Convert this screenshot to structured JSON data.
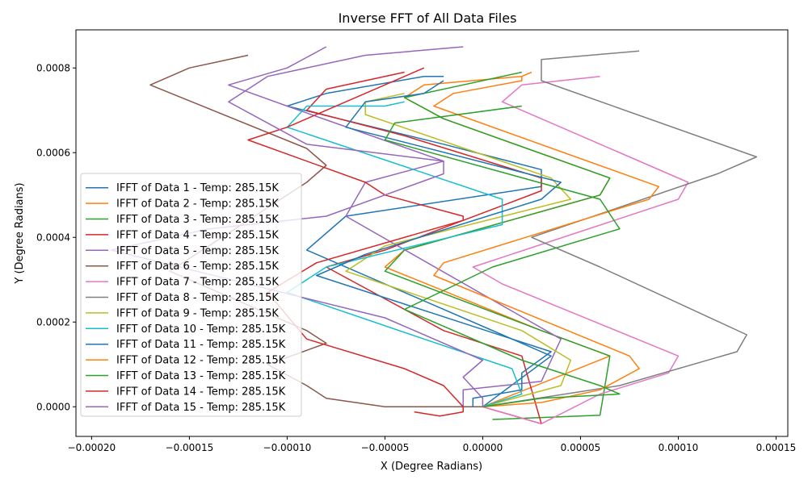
{
  "chart_data": {
    "type": "line",
    "title": "Inverse FFT of All Data Files",
    "xlabel": "X (Degree Radians)",
    "ylabel": "Y (Degree Radians)",
    "xlim": [
      -0.000208,
      0.000156
    ],
    "ylim": [
      -7e-05,
      0.00089
    ],
    "xticks": [
      -0.0002,
      -0.00015,
      -0.0001,
      -5e-05,
      0,
      5e-05,
      0.0001,
      0.00015
    ],
    "xtick_labels": [
      "−0.00020",
      "−0.00015",
      "−0.00010",
      "−0.00005",
      "0.00000",
      "0.00005",
      "0.00010",
      "0.00015"
    ],
    "yticks": [
      0,
      0.0002,
      0.0004,
      0.0006,
      0.0008
    ],
    "ytick_labels": [
      "0.0000",
      "0.0002",
      "0.0004",
      "0.0006",
      "0.0008"
    ],
    "grid": false,
    "legend_position": "center-left",
    "series": [
      {
        "name": "IFFT of Data 1 - Temp: 285.15K",
        "color": "#1f77b4",
        "points": [
          [
            0,
            0
          ],
          [
            3.5e-05,
            0.00012
          ],
          [
            1e-05,
            0.00017
          ],
          [
            -9e-05,
            0.00037
          ],
          [
            -7e-05,
            0.00045
          ],
          [
            3e-05,
            0.00052
          ],
          [
            3e-05,
            0.00056
          ],
          [
            -2e-05,
            0.00062
          ],
          [
            -0.0001,
            0.00071
          ],
          [
            -8e-05,
            0.00074
          ],
          [
            -3e-05,
            0.00078
          ],
          [
            -2e-05,
            0.00078
          ]
        ]
      },
      {
        "name": "IFFT of Data 2 - Temp: 285.15K",
        "color": "#ff7f0e",
        "points": [
          [
            0,
            0
          ],
          [
            6.5e-05,
            0.00012
          ],
          [
            3e-05,
            0.00018
          ],
          [
            -5e-05,
            0.00033
          ],
          [
            -4e-05,
            0.00037
          ],
          [
            6e-05,
            0.0005
          ],
          [
            6.5e-05,
            0.00054
          ],
          [
            -2e-05,
            0.00068
          ],
          [
            -4e-05,
            0.00073
          ],
          [
            -3e-05,
            0.00076
          ],
          [
            2e-05,
            0.00078
          ],
          [
            2.5e-05,
            0.00079
          ]
        ]
      },
      {
        "name": "IFFT of Data 3 - Temp: 285.15K",
        "color": "#2ca02c",
        "points": [
          [
            5e-06,
            -3e-05
          ],
          [
            6e-05,
            -2e-05
          ],
          [
            6.5e-05,
            0.00012
          ],
          [
            3e-05,
            0.00018
          ],
          [
            -5e-05,
            0.00032
          ],
          [
            -4e-05,
            0.00037
          ],
          [
            6e-05,
            0.0005
          ],
          [
            6.5e-05,
            0.00054
          ],
          [
            -2e-05,
            0.00068
          ],
          [
            -4e-05,
            0.00073
          ],
          [
            2e-05,
            0.00079
          ]
        ]
      },
      {
        "name": "IFFT of Data 4 - Temp: 285.15K",
        "color": "#d62728",
        "points": [
          [
            0,
            0
          ],
          [
            3e-05,
            -4e-05
          ],
          [
            2e-05,
            0.00012
          ],
          [
            -2e-05,
            0.00018
          ],
          [
            -8e-05,
            0.00033
          ],
          [
            -5e-05,
            0.00037
          ],
          [
            3e-05,
            0.00051
          ],
          [
            3e-05,
            0.00054
          ],
          [
            -4e-05,
            0.00064
          ],
          [
            -9e-05,
            0.0007
          ],
          [
            -8e-05,
            0.00075
          ],
          [
            -4e-05,
            0.00079
          ]
        ]
      },
      {
        "name": "IFFT of Data 5 - Temp: 285.15K",
        "color": "#9467bd",
        "points": [
          [
            -1e-05,
            0
          ],
          [
            -1e-05,
            4e-05
          ],
          [
            3e-05,
            6e-05
          ],
          [
            4e-05,
            0.00016
          ],
          [
            -7e-05,
            0.00045
          ],
          [
            -6e-05,
            0.00053
          ],
          [
            -2e-05,
            0.00058
          ],
          [
            -0.0001,
            0.00071
          ],
          [
            -0.00013,
            0.00076
          ],
          [
            -0.0001,
            0.0008
          ],
          [
            -8e-05,
            0.00085
          ]
        ]
      },
      {
        "name": "IFFT of Data 6 - Temp: 285.15K",
        "color": "#8c564b",
        "points": [
          [
            0,
            0
          ],
          [
            -5e-05,
            0
          ],
          [
            -8e-05,
            2e-05
          ],
          [
            -9e-05,
            5e-05
          ],
          [
            -0.00011,
            0.0001
          ],
          [
            -8e-05,
            0.00015
          ],
          [
            -9e-05,
            0.00018
          ],
          [
            -0.00016,
            0.00032
          ],
          [
            -9e-05,
            0.00053
          ],
          [
            -8e-05,
            0.00057
          ],
          [
            -9e-05,
            0.00061
          ],
          [
            -0.00017,
            0.00076
          ],
          [
            -0.00015,
            0.0008
          ],
          [
            -0.00012,
            0.00083
          ]
        ]
      },
      {
        "name": "IFFT of Data 7 - Temp: 285.15K",
        "color": "#e377c2",
        "points": [
          [
            0,
            0
          ],
          [
            3e-05,
            -4e-05
          ],
          [
            6e-05,
            3e-05
          ],
          [
            9.5e-05,
            8e-05
          ],
          [
            0.0001,
            0.00012
          ],
          [
            1e-05,
            0.00029
          ],
          [
            -5e-06,
            0.00033
          ],
          [
            0.0001,
            0.00049
          ],
          [
            0.000105,
            0.00053
          ],
          [
            1e-05,
            0.00072
          ],
          [
            2e-05,
            0.00076
          ],
          [
            6e-05,
            0.00078
          ]
        ]
      },
      {
        "name": "IFFT of Data 8 - Temp: 285.15K",
        "color": "#7f7f7f",
        "points": [
          [
            0,
            0
          ],
          [
            7e-05,
            5e-05
          ],
          [
            0.00013,
            0.00013
          ],
          [
            0.000135,
            0.00017
          ],
          [
            6e-05,
            0.00033
          ],
          [
            2.5e-05,
            0.0004
          ],
          [
            0.00012,
            0.00055
          ],
          [
            0.00014,
            0.00059
          ],
          [
            3e-05,
            0.00077
          ],
          [
            3e-05,
            0.00082
          ],
          [
            8e-05,
            0.00084
          ]
        ]
      },
      {
        "name": "IFFT of Data 9 - Temp: 285.15K",
        "color": "#bcbd22",
        "points": [
          [
            0,
            0
          ],
          [
            4e-05,
            5e-05
          ],
          [
            4.5e-05,
            0.00011
          ],
          [
            2e-05,
            0.00018
          ],
          [
            -7e-05,
            0.00032
          ],
          [
            -5e-05,
            0.00038
          ],
          [
            4.5e-05,
            0.00049
          ],
          [
            3.5e-05,
            0.00054
          ],
          [
            -6e-05,
            0.00069
          ],
          [
            -6e-05,
            0.00072
          ],
          [
            -4e-05,
            0.00074
          ]
        ]
      },
      {
        "name": "IFFT of Data 10 - Temp: 285.15K",
        "color": "#17becf",
        "points": [
          [
            0,
            0
          ],
          [
            2e-05,
            3e-05
          ],
          [
            1.5e-05,
            9e-05
          ],
          [
            -3e-05,
            0.00016
          ],
          [
            -0.0001,
            0.00027
          ],
          [
            -8e-05,
            0.00033
          ],
          [
            1e-05,
            0.00043
          ],
          [
            1e-05,
            0.00049
          ],
          [
            -0.0001,
            0.00066
          ],
          [
            -9e-05,
            0.00071
          ],
          [
            -5e-05,
            0.00071
          ],
          [
            -4e-05,
            0.00072
          ]
        ]
      },
      {
        "name": "IFFT of Data 11 - Temp: 285.15K",
        "color": "#1f77b4",
        "points": [
          [
            -5e-06,
            0
          ],
          [
            -5e-06,
            2e-05
          ],
          [
            2e-05,
            4e-05
          ],
          [
            2e-05,
            8e-05
          ],
          [
            3.5e-05,
            0.00013
          ],
          [
            -8.5e-05,
            0.00031
          ],
          [
            -6e-05,
            0.00036
          ],
          [
            3e-05,
            0.00049
          ],
          [
            4e-05,
            0.00053
          ],
          [
            -7e-05,
            0.00066
          ],
          [
            -6e-05,
            0.00072
          ],
          [
            -3e-05,
            0.00074
          ],
          [
            -2e-05,
            0.00077
          ]
        ]
      },
      {
        "name": "IFFT of Data 12 - Temp: 285.15K",
        "color": "#ff7f0e",
        "points": [
          [
            0,
            0
          ],
          [
            3e-05,
            1e-05
          ],
          [
            6e-05,
            4e-05
          ],
          [
            8e-05,
            9e-05
          ],
          [
            7.5e-05,
            0.00012
          ],
          [
            -2.5e-05,
            0.00031
          ],
          [
            -2e-05,
            0.00034
          ],
          [
            8.5e-05,
            0.00049
          ],
          [
            9e-05,
            0.00052
          ],
          [
            -2.5e-05,
            0.00071
          ],
          [
            -1.5e-05,
            0.00074
          ],
          [
            2e-05,
            0.00077
          ],
          [
            2e-05,
            0.00078
          ]
        ]
      },
      {
        "name": "IFFT of Data 13 - Temp: 285.15K",
        "color": "#2ca02c",
        "points": [
          [
            0,
            0
          ],
          [
            3e-05,
            2e-05
          ],
          [
            7e-05,
            3e-05
          ],
          [
            6e-05,
            5e-05
          ],
          [
            2e-05,
            0.00011
          ],
          [
            -4e-05,
            0.00023
          ],
          [
            5e-06,
            0.00033
          ],
          [
            7e-05,
            0.00042
          ],
          [
            6e-05,
            0.00049
          ],
          [
            -5e-05,
            0.00063
          ],
          [
            -4.5e-05,
            0.00067
          ],
          [
            2e-05,
            0.00071
          ]
        ]
      },
      {
        "name": "IFFT of Data 14 - Temp: 285.15K",
        "color": "#d62728",
        "points": [
          [
            -3.5e-05,
            -1.2e-05
          ],
          [
            -2.2e-05,
            -2.2e-05
          ],
          [
            -1e-05,
            -1.2e-05
          ],
          [
            -1e-05,
            0
          ],
          [
            -2e-05,
            5e-05
          ],
          [
            -4e-05,
            9e-05
          ],
          [
            -9e-05,
            0.00016
          ],
          [
            -0.00011,
            0.00027
          ],
          [
            -8.5e-05,
            0.00034
          ],
          [
            -1e-05,
            0.00044
          ],
          [
            -1e-05,
            0.00045
          ],
          [
            -5e-05,
            0.0005
          ],
          [
            -6e-05,
            0.00053
          ],
          [
            -0.00012,
            0.00063
          ],
          [
            -0.0001,
            0.00066
          ],
          [
            -3e-05,
            0.0008
          ]
        ]
      },
      {
        "name": "IFFT of Data 15 - Temp: 285.15K",
        "color": "#9467bd",
        "points": [
          [
            0,
            0
          ],
          [
            0,
            2e-05
          ],
          [
            -1e-05,
            7e-05
          ],
          [
            0,
            0.00011
          ],
          [
            -5e-05,
            0.00021
          ],
          [
            -0.00019,
            0.00037
          ],
          [
            -0.00014,
            0.00042
          ],
          [
            -8e-05,
            0.00045
          ],
          [
            -2e-05,
            0.00055
          ],
          [
            -2e-05,
            0.00058
          ],
          [
            -9e-05,
            0.00062
          ],
          [
            -0.00013,
            0.00072
          ],
          [
            -0.00011,
            0.00078
          ],
          [
            -6e-05,
            0.00083
          ],
          [
            -1e-05,
            0.00085
          ]
        ]
      }
    ]
  }
}
